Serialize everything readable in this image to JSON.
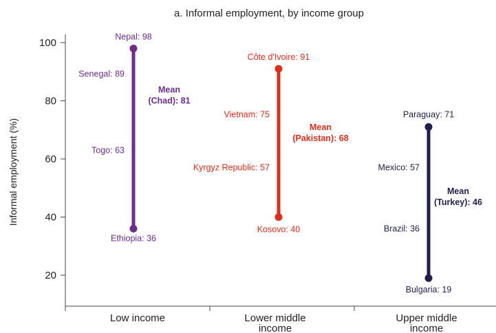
{
  "chart_data": {
    "type": "range",
    "title": "a. Informal employment, by income group",
    "ylabel": "Informal employment (%)",
    "ylim": [
      10,
      105
    ],
    "yticks": [
      20,
      40,
      60,
      80,
      100
    ],
    "groups": [
      {
        "category": [
          "Low income"
        ],
        "color": "#6f2c8f",
        "min": 36,
        "max": 98,
        "points": [
          {
            "label": "Nepal: 98",
            "value": 98
          },
          {
            "label": "Senegal: 89",
            "value": 89
          },
          {
            "label": "Togo: 63",
            "value": 63
          },
          {
            "label": "Ethiopia: 36",
            "value": 36
          }
        ],
        "mean": {
          "lines": [
            "Mean",
            "(Chad): 81"
          ],
          "value": 81
        }
      },
      {
        "category": [
          "Lower middle",
          "income"
        ],
        "color": "#e02d1b",
        "min": 40,
        "max": 91,
        "points": [
          {
            "label": "Côte d'Ivoire: 91",
            "value": 91
          },
          {
            "label": "Vietnam: 75",
            "value": 75
          },
          {
            "label": "Kyrgyz Republic: 57",
            "value": 57
          },
          {
            "label": "Kosovo: 40",
            "value": 40
          }
        ],
        "mean": {
          "lines": [
            "Mean",
            "(Pakistan): 68"
          ],
          "value": 68
        }
      },
      {
        "category": [
          "Upper middle",
          "income"
        ],
        "color": "#1f1f4f",
        "min": 19,
        "max": 71,
        "points": [
          {
            "label": "Paraguay: 71",
            "value": 71
          },
          {
            "label": "Mexico: 57",
            "value": 57
          },
          {
            "label": "Brazil: 36",
            "value": 36
          },
          {
            "label": "Bulgaria: 19",
            "value": 19
          }
        ],
        "mean": {
          "lines": [
            "Mean",
            "(Turkey): 46"
          ],
          "value": 46
        }
      }
    ]
  }
}
